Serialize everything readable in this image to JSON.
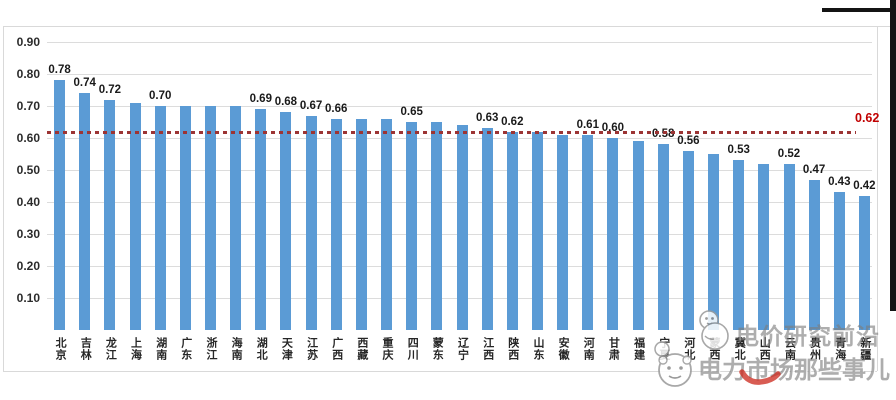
{
  "chart_data": {
    "type": "bar",
    "title": "",
    "xlabel": "",
    "ylabel": "",
    "categories": [
      "北京",
      "吉林",
      "龙江",
      "上海",
      "湖南",
      "广东",
      "浙江",
      "海南",
      "湖北",
      "天津",
      "江苏",
      "广西",
      "西藏",
      "重庆",
      "四川",
      "蒙东",
      "辽宁",
      "江西",
      "陕西",
      "山东",
      "安徽",
      "河南",
      "甘肃",
      "福建",
      "宁夏",
      "河北",
      "蒙西",
      "冀北",
      "山西",
      "云南",
      "贵州",
      "青海",
      "新疆"
    ],
    "values": [
      0.78,
      0.74,
      0.72,
      0.71,
      0.7,
      0.7,
      0.7,
      0.7,
      0.69,
      0.68,
      0.67,
      0.66,
      0.66,
      0.66,
      0.65,
      0.65,
      0.64,
      0.63,
      0.62,
      0.62,
      0.61,
      0.61,
      0.6,
      0.59,
      0.58,
      0.56,
      0.55,
      0.53,
      0.52,
      0.52,
      0.47,
      0.43,
      0.42
    ],
    "bar_labels": [
      "0.78",
      "0.74",
      "0.72",
      null,
      "0.70",
      null,
      null,
      null,
      "0.69",
      "0.68",
      "0.67",
      "0.66",
      null,
      null,
      "0.65",
      null,
      null,
      "0.63",
      "0.62",
      null,
      null,
      "0.61",
      "0.60",
      null,
      "0.58",
      "0.56",
      null,
      "0.53",
      null,
      "0.52",
      "0.47",
      "0.43",
      "0.42"
    ],
    "yticks": [
      "0.90",
      "0.80",
      "0.70",
      "0.60",
      "0.50",
      "0.40",
      "0.30",
      "0.20",
      "0.10"
    ],
    "ylim": [
      0,
      0.95
    ],
    "grid": true,
    "legend_position": "none",
    "bar_color": "#5b9bd5",
    "reference_line": {
      "value": 0.62,
      "label": "0.62",
      "color": "#c00000",
      "style": "dashed"
    }
  },
  "watermarks": {
    "brand1": {
      "text": "电价研究前沿",
      "icon": "chick-mascot-icon"
    },
    "brand2": {
      "text": "电力市场那些事儿",
      "icon": "animal-face-mascot-icon"
    }
  }
}
